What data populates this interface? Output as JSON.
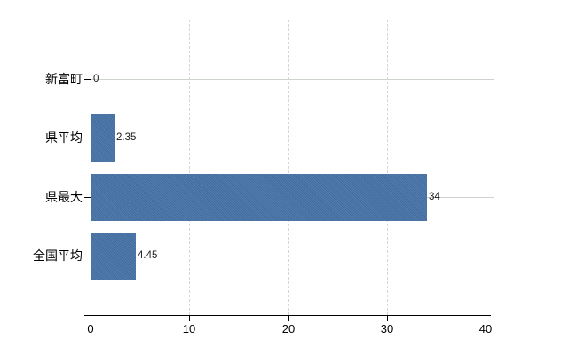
{
  "chart_data": {
    "type": "bar",
    "orientation": "horizontal",
    "title": "",
    "xlabel": "",
    "ylabel": "",
    "categories": [
      "新富町",
      "県平均",
      "県最大",
      "全国平均"
    ],
    "values": [
      0,
      2.35,
      34,
      4.45
    ],
    "value_labels": [
      "0",
      "2.35",
      "34",
      "4.45"
    ],
    "series": [
      {
        "name": "",
        "values": [
          0,
          2.35,
          34,
          4.45
        ]
      }
    ],
    "xlim": [
      0,
      40
    ],
    "x_ticks": [
      0,
      10,
      20,
      30,
      40
    ],
    "x_tick_labels": [
      "0",
      "10",
      "20",
      "30",
      "40"
    ],
    "grid": true,
    "legend_visible": false,
    "colors": {
      "bar": "#4573a7",
      "axis": "#000000",
      "category_gridline": "#ccd4cc",
      "value_gridline": "#d6d6d6",
      "text": "#1a1a1a",
      "background": "#ffffff"
    }
  }
}
